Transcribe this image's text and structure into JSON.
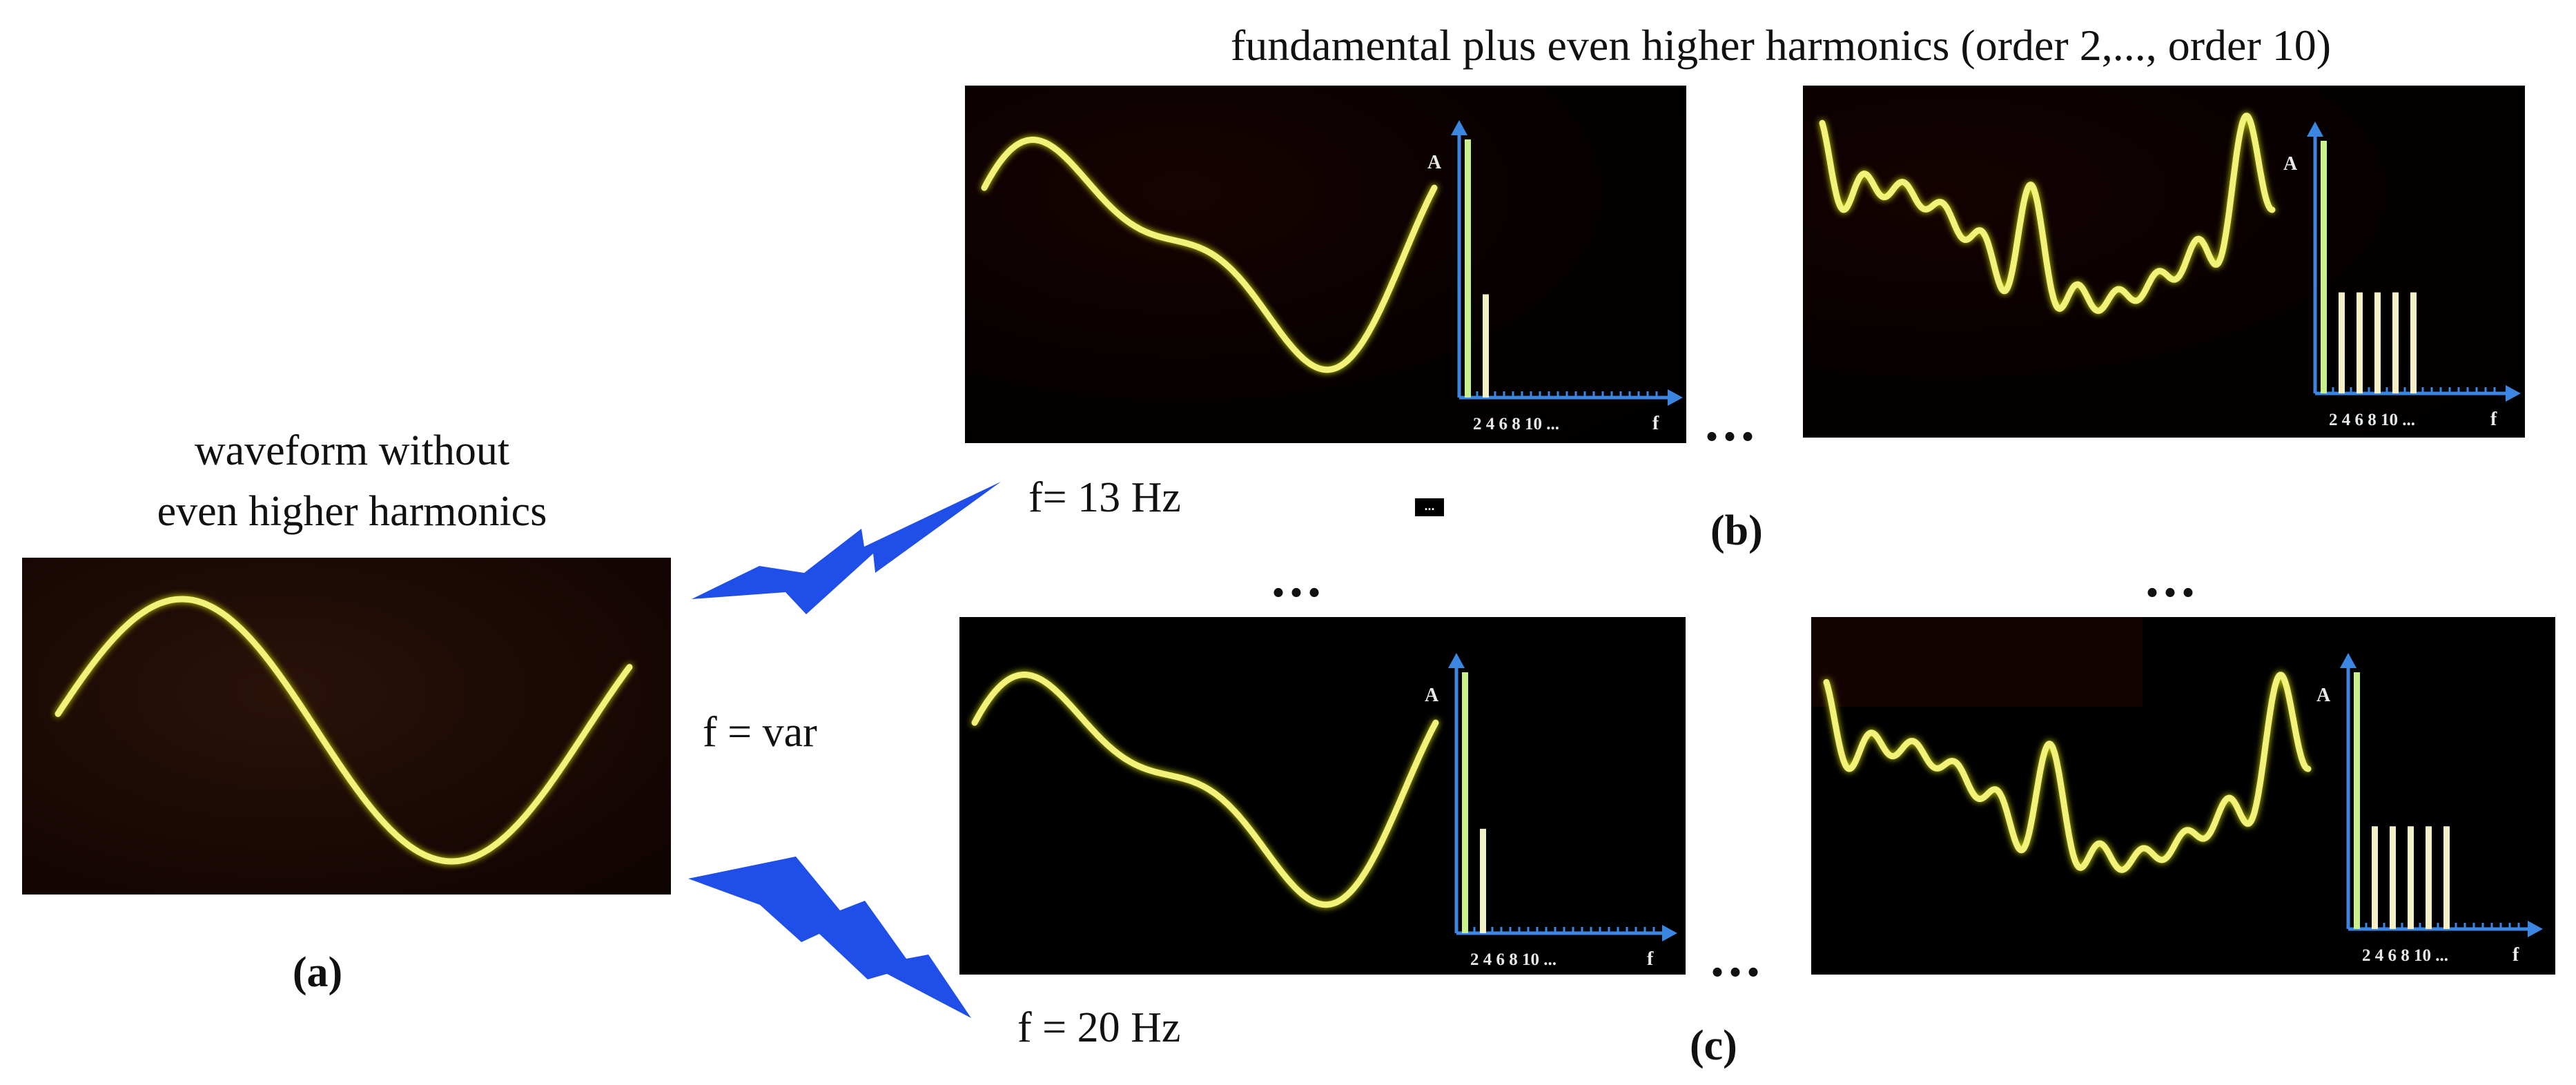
{
  "title": "fundamental plus even higher harmonics (order 2,..., order 10)",
  "panel_a": {
    "caption_line1": "waveform without",
    "caption_line2": "even higher harmonics",
    "label": "(a)",
    "waveform": "fundamental"
  },
  "f_var": "f = var",
  "panel_b": {
    "label": "(b)",
    "freq": "f= 13 Hz"
  },
  "panel_c": {
    "label": "(c)",
    "freq": "f = 20 Hz"
  },
  "small_marker": "...",
  "ellipsis": "...",
  "spectrum_labels": {
    "y_axis": "A",
    "x_axis": "f",
    "ticks": "2 4 6 8 10 ..."
  },
  "spectra": {
    "b_left": {
      "bars": [
        {
          "order": 1,
          "amplitude": 1.0
        },
        {
          "order": 2,
          "amplitude": 0.4
        }
      ]
    },
    "b_right": {
      "bars": [
        {
          "order": 1,
          "amplitude": 1.0
        },
        {
          "order": 2,
          "amplitude": 0.4
        },
        {
          "order": 4,
          "amplitude": 0.4
        },
        {
          "order": 6,
          "amplitude": 0.4
        },
        {
          "order": 8,
          "amplitude": 0.4
        },
        {
          "order": 10,
          "amplitude": 0.4
        }
      ]
    },
    "c_left": {
      "bars": [
        {
          "order": 1,
          "amplitude": 1.0
        },
        {
          "order": 2,
          "amplitude": 0.4
        }
      ]
    },
    "c_right": {
      "bars": [
        {
          "order": 1,
          "amplitude": 1.0
        },
        {
          "order": 2,
          "amplitude": 0.4
        },
        {
          "order": 4,
          "amplitude": 0.4
        },
        {
          "order": 6,
          "amplitude": 0.4
        },
        {
          "order": 8,
          "amplitude": 0.4
        },
        {
          "order": 10,
          "amplitude": 0.4
        }
      ]
    }
  },
  "colors": {
    "trace": "#f2f27a",
    "trace_glow": "#c8d400",
    "axis": "#3b86e0",
    "bar_fundamental": "#c9f08a",
    "bar_harmonic": "#f3f0c8",
    "bolt": "#1f4fe8",
    "screen": "#000000",
    "screen_a": "#1c0a04"
  }
}
